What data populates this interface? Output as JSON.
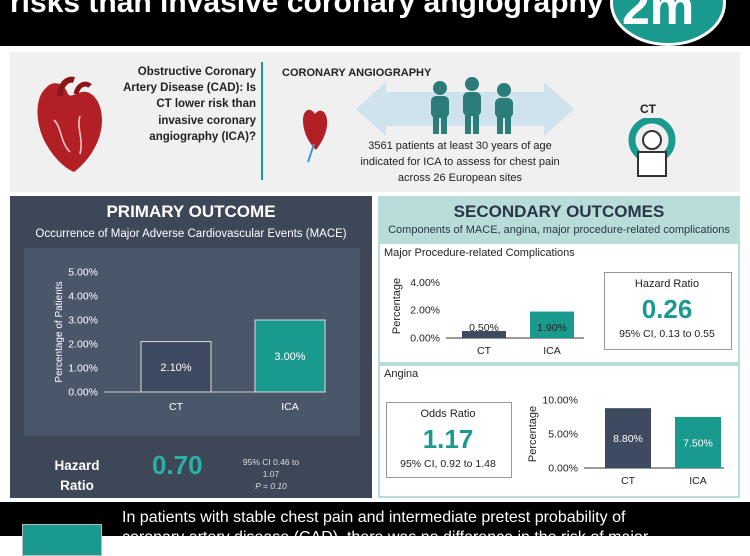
{
  "banner": {
    "title": "risks than invasive coronary angiography",
    "logo_text": "2m"
  },
  "intro": {
    "question": "Obstructive Coronary Artery Disease (CAD): Is CT lower risk than invasive coronary angiography (ICA)?",
    "ca_title": "CORONARY ANGIOGRAPHY",
    "ct_label": "CT",
    "patients": "3561 patients at least 30 years of age indicated for ICA to assess for chest pain across 26 European sites"
  },
  "primary": {
    "title": "PRIMARY OUTCOME",
    "subtitle": "Occurrence of Major Adverse Cardiovascular Events (MACE)",
    "hr_label": "Hazard Ratio",
    "hr_value": "0.70",
    "ci_line1": "95% CI 0.46 to 1.07",
    "p_value": "P = 0.10"
  },
  "secondary": {
    "title": "SECONDARY OUTCOMES",
    "subtitle": "Components of MACE, angina, major procedure-related complications",
    "mp_label": "Major Procedure-related Complications",
    "hr_label": "Hazard Ratio",
    "hr_value": "0.26",
    "hr_ci": "95% CI, 0.13 to 0.55",
    "angina_label": "Angina",
    "or_label": "Odds Ratio",
    "or_value": "1.17",
    "or_ci": "95% CI, 0.92 to 1.48"
  },
  "footer": {
    "text": "In patients with stable chest pain and intermediate pretest probability of coronary artery disease (CAD), there was no difference in the risk of major"
  },
  "colors": {
    "teal": "#1a9a8f",
    "slate": "#3d4758",
    "light_teal": "#b8ddd8",
    "bar_ct": "#3d4a5f",
    "bar_ica": "#1a9a8f"
  },
  "chart_data": [
    {
      "type": "bar",
      "categories": [
        "CT",
        "ICA"
      ],
      "values": [
        2.1,
        3.0
      ],
      "data_labels": [
        "2.10%",
        "3.00%"
      ],
      "ylabel": "Percentage of Patients",
      "yticks": [
        "0.00%",
        "1.00%",
        "2.00%",
        "3.00%",
        "4.00%",
        "5.00%"
      ],
      "ylim": [
        0,
        5
      ]
    },
    {
      "type": "bar",
      "categories": [
        "CT",
        "ICA"
      ],
      "values": [
        0.5,
        1.9
      ],
      "data_labels": [
        "0.50%",
        "1.90%"
      ],
      "ylabel": "Percentage",
      "yticks": [
        "0.00%",
        "2.00%",
        "4.00%"
      ],
      "ylim": [
        0,
        4.6
      ]
    },
    {
      "type": "bar",
      "categories": [
        "CT",
        "ICA"
      ],
      "values": [
        8.8,
        7.5
      ],
      "data_labels": [
        "8.80%",
        "7.50%"
      ],
      "ylabel": "Percentage",
      "yticks": [
        "0.00%",
        "5.00%",
        "10.00%"
      ],
      "ylim": [
        0,
        10
      ]
    }
  ]
}
